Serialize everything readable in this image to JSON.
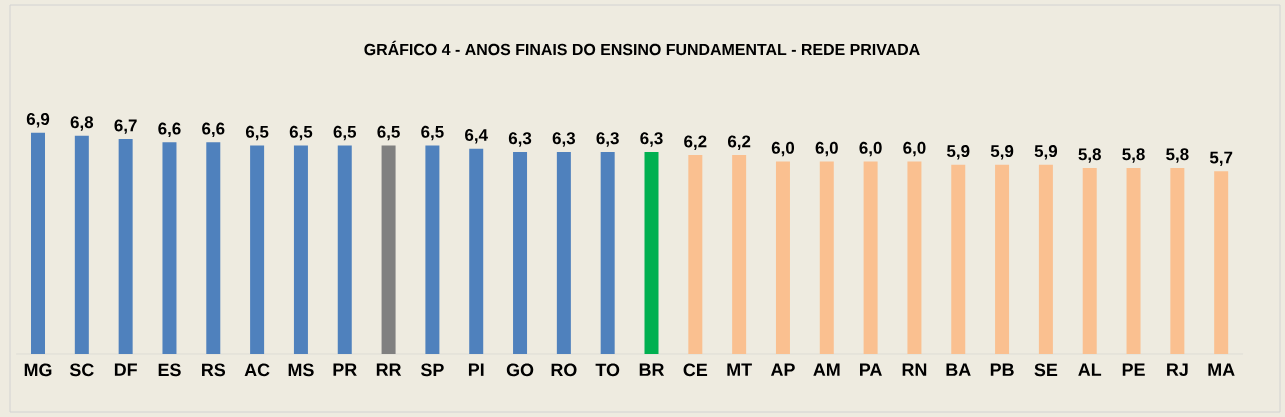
{
  "chart_data": {
    "type": "bar",
    "title": "GRÁFICO 4 - ANOS FINAIS DO ENSINO FUNDAMENTAL - REDE PRIVADA",
    "categories": [
      "MG",
      "SC",
      "DF",
      "ES",
      "RS",
      "AC",
      "MS",
      "PR",
      "RR",
      "SP",
      "PI",
      "GO",
      "RO",
      "TO",
      "BR",
      "CE",
      "MT",
      "AP",
      "AM",
      "PA",
      "RN",
      "BA",
      "PB",
      "SE",
      "AL",
      "PE",
      "RJ",
      "MA"
    ],
    "values": [
      6.9,
      6.8,
      6.7,
      6.6,
      6.6,
      6.5,
      6.5,
      6.5,
      6.5,
      6.5,
      6.4,
      6.3,
      6.3,
      6.3,
      6.3,
      6.2,
      6.2,
      6.0,
      6.0,
      6.0,
      6.0,
      5.9,
      5.9,
      5.9,
      5.8,
      5.8,
      5.8,
      5.7
    ],
    "value_labels": [
      "6,9",
      "6,8",
      "6,7",
      "6,6",
      "6,6",
      "6,5",
      "6,5",
      "6,5",
      "6,5",
      "6,5",
      "6,4",
      "6,3",
      "6,3",
      "6,3",
      "6,3",
      "6,2",
      "6,2",
      "6,0",
      "6,0",
      "6,0",
      "6,0",
      "5,9",
      "5,9",
      "5,9",
      "5,8",
      "5,8",
      "5,8",
      "5,7"
    ],
    "colors": [
      "#4f81bd",
      "#4f81bd",
      "#4f81bd",
      "#4f81bd",
      "#4f81bd",
      "#4f81bd",
      "#4f81bd",
      "#4f81bd",
      "#808080",
      "#4f81bd",
      "#4f81bd",
      "#4f81bd",
      "#4f81bd",
      "#4f81bd",
      "#00b050",
      "#fac090",
      "#fac090",
      "#fac090",
      "#fac090",
      "#fac090",
      "#fac090",
      "#fac090",
      "#fac090",
      "#fac090",
      "#fac090",
      "#fac090",
      "#fac090",
      "#fac090"
    ],
    "data_labels": false
  }
}
